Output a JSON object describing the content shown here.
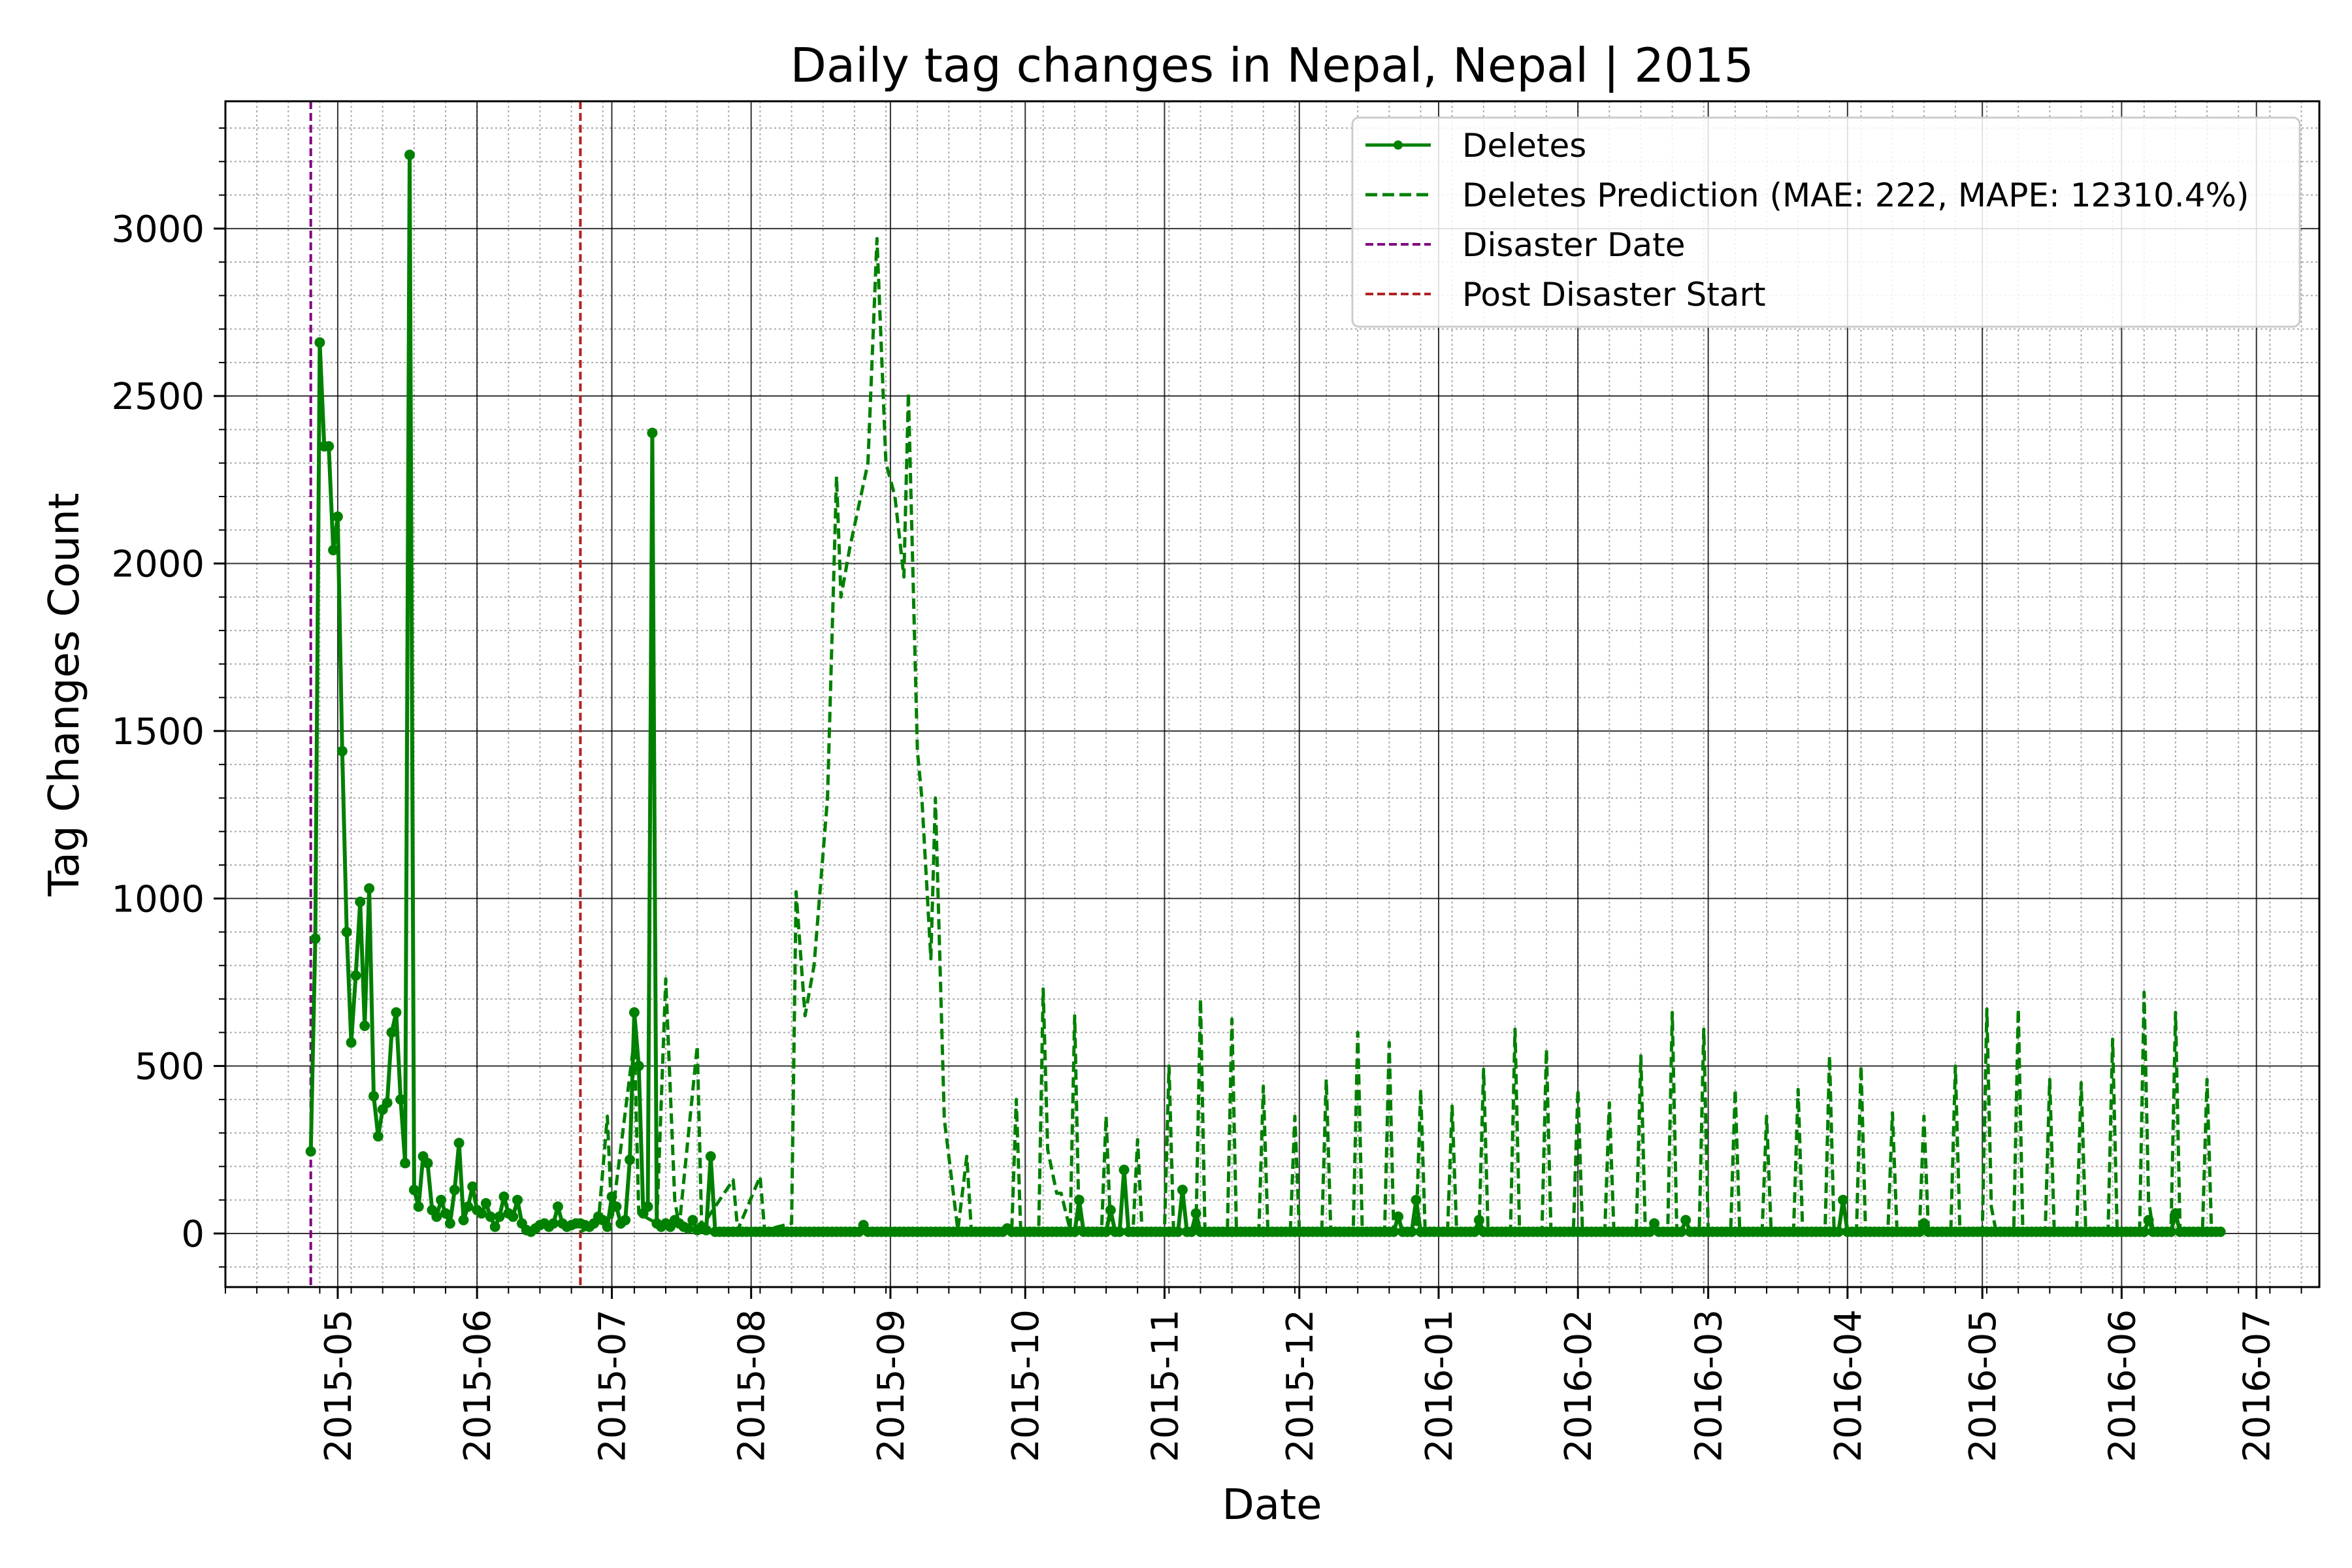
{
  "chart_data": {
    "type": "line",
    "title": "Daily tag changes in Nepal, Nepal | 2015",
    "xlabel": "Date",
    "ylabel": "Tag Changes Count",
    "xlim": [
      "2015-04-06",
      "2016-07-15"
    ],
    "ylim": [
      -160,
      3380
    ],
    "grid": true,
    "legend_position": "top-right",
    "x_tick_labels": [
      "2015-05",
      "2015-06",
      "2015-07",
      "2015-08",
      "2015-09",
      "2015-10",
      "2015-11",
      "2015-12",
      "2016-01",
      "2016-02",
      "2016-03",
      "2016-04",
      "2016-05",
      "2016-06",
      "2016-07"
    ],
    "y_ticks": [
      0,
      500,
      1000,
      1500,
      2000,
      2500,
      3000
    ],
    "y_tick_labels": [
      "0",
      "500",
      "1000",
      "1500",
      "2000",
      "2500",
      "3000"
    ],
    "colors": {
      "deletes": "#008000",
      "prediction": "#008000",
      "disaster": "#800080",
      "post_disaster": "#b22222",
      "major_grid": "#000000",
      "minor_grid": "#aaaaaa"
    },
    "vlines": [
      {
        "name": "Disaster Date",
        "x": "2015-04-25",
        "color": "#800080"
      },
      {
        "name": "Post Disaster Start",
        "x": "2015-06-24",
        "color": "#b22222"
      }
    ],
    "series": [
      {
        "name": "Deletes",
        "style": "solid-marker",
        "points": [
          [
            "2015-04-25",
            245
          ],
          [
            "2015-04-26",
            880
          ],
          [
            "2015-04-27",
            2660
          ],
          [
            "2015-04-28",
            2350
          ],
          [
            "2015-04-29",
            2350
          ],
          [
            "2015-04-30",
            2040
          ],
          [
            "2015-05-01",
            2140
          ],
          [
            "2015-05-02",
            1440
          ],
          [
            "2015-05-03",
            900
          ],
          [
            "2015-05-04",
            570
          ],
          [
            "2015-05-05",
            770
          ],
          [
            "2015-05-06",
            990
          ],
          [
            "2015-05-07",
            620
          ],
          [
            "2015-05-08",
            1030
          ],
          [
            "2015-05-09",
            410
          ],
          [
            "2015-05-10",
            290
          ],
          [
            "2015-05-11",
            370
          ],
          [
            "2015-05-12",
            390
          ],
          [
            "2015-05-13",
            600
          ],
          [
            "2015-05-14",
            660
          ],
          [
            "2015-05-15",
            400
          ],
          [
            "2015-05-16",
            210
          ],
          [
            "2015-05-17",
            3220
          ],
          [
            "2015-05-18",
            130
          ],
          [
            "2015-05-19",
            80
          ],
          [
            "2015-05-20",
            230
          ],
          [
            "2015-05-21",
            210
          ],
          [
            "2015-05-22",
            70
          ],
          [
            "2015-05-23",
            50
          ],
          [
            "2015-05-24",
            100
          ],
          [
            "2015-05-25",
            60
          ],
          [
            "2015-05-26",
            30
          ],
          [
            "2015-05-27",
            130
          ],
          [
            "2015-05-28",
            270
          ],
          [
            "2015-05-29",
            40
          ],
          [
            "2015-05-30",
            80
          ],
          [
            "2015-05-31",
            140
          ],
          [
            "2015-06-01",
            70
          ],
          [
            "2015-06-02",
            60
          ],
          [
            "2015-06-03",
            90
          ],
          [
            "2015-06-04",
            50
          ],
          [
            "2015-06-05",
            20
          ],
          [
            "2015-06-06",
            50
          ],
          [
            "2015-06-07",
            110
          ],
          [
            "2015-06-08",
            60
          ],
          [
            "2015-06-09",
            50
          ],
          [
            "2015-06-10",
            100
          ],
          [
            "2015-06-11",
            30
          ],
          [
            "2015-06-12",
            10
          ],
          [
            "2015-06-13",
            5
          ],
          [
            "2015-06-14",
            15
          ],
          [
            "2015-06-15",
            25
          ],
          [
            "2015-06-16",
            30
          ],
          [
            "2015-06-17",
            20
          ],
          [
            "2015-06-18",
            30
          ],
          [
            "2015-06-19",
            80
          ],
          [
            "2015-06-20",
            30
          ],
          [
            "2015-06-21",
            20
          ],
          [
            "2015-06-22",
            25
          ],
          [
            "2015-06-23",
            30
          ],
          [
            "2015-06-24",
            30
          ],
          [
            "2015-06-25",
            25
          ],
          [
            "2015-06-26",
            20
          ],
          [
            "2015-06-27",
            30
          ],
          [
            "2015-06-28",
            50
          ],
          [
            "2015-06-29",
            40
          ],
          [
            "2015-06-30",
            20
          ],
          [
            "2015-07-01",
            110
          ],
          [
            "2015-07-02",
            80
          ],
          [
            "2015-07-03",
            30
          ],
          [
            "2015-07-04",
            40
          ],
          [
            "2015-07-05",
            220
          ],
          [
            "2015-07-06",
            660
          ],
          [
            "2015-07-07",
            500
          ],
          [
            "2015-07-08",
            60
          ],
          [
            "2015-07-09",
            80
          ],
          [
            "2015-07-10",
            2390
          ],
          [
            "2015-07-11",
            30
          ],
          [
            "2015-07-12",
            20
          ],
          [
            "2015-07-13",
            30
          ],
          [
            "2015-07-14",
            20
          ],
          [
            "2015-07-15",
            40
          ],
          [
            "2015-07-16",
            30
          ],
          [
            "2015-07-17",
            20
          ],
          [
            "2015-07-18",
            15
          ],
          [
            "2015-07-19",
            40
          ],
          [
            "2015-07-20",
            10
          ],
          [
            "2015-07-21",
            20
          ],
          [
            "2015-07-22",
            10
          ],
          [
            "2015-07-23",
            230
          ],
          [
            "2015-08-26",
            25
          ],
          [
            "2015-09-27",
            15
          ],
          [
            "2015-10-13",
            100
          ],
          [
            "2015-10-20",
            70
          ],
          [
            "2015-10-23",
            190
          ],
          [
            "2015-11-05",
            130
          ],
          [
            "2015-11-08",
            60
          ],
          [
            "2015-12-23",
            50
          ],
          [
            "2015-12-27",
            100
          ],
          [
            "2016-01-10",
            40
          ],
          [
            "2016-02-18",
            30
          ],
          [
            "2016-02-25",
            40
          ],
          [
            "2016-03-31",
            100
          ],
          [
            "2016-04-18",
            30
          ],
          [
            "2016-06-07",
            40
          ],
          [
            "2016-06-13",
            60
          ]
        ],
        "baseline": {
          "from": "2015-07-24",
          "to": "2016-06-23",
          "value": 5
        }
      },
      {
        "name": "Deletes Prediction (MAE: 222, MAPE: 12310.4%)",
        "style": "dashed",
        "points": [
          [
            "2015-06-24",
            5
          ],
          [
            "2015-06-28",
            30
          ],
          [
            "2015-06-30",
            350
          ],
          [
            "2015-07-01",
            40
          ],
          [
            "2015-07-06",
            580
          ],
          [
            "2015-07-07",
            60
          ],
          [
            "2015-07-11",
            30
          ],
          [
            "2015-07-13",
            760
          ],
          [
            "2015-07-15",
            100
          ],
          [
            "2015-07-16",
            20
          ],
          [
            "2015-07-20",
            560
          ],
          [
            "2015-07-21",
            20
          ],
          [
            "2015-07-28",
            160
          ],
          [
            "2015-07-29",
            10
          ],
          [
            "2015-08-03",
            170
          ],
          [
            "2015-08-04",
            10
          ],
          [
            "2015-08-10",
            30
          ],
          [
            "2015-08-11",
            1020
          ],
          [
            "2015-08-13",
            650
          ],
          [
            "2015-08-15",
            800
          ],
          [
            "2015-08-18",
            1300
          ],
          [
            "2015-08-20",
            2260
          ],
          [
            "2015-08-21",
            1900
          ],
          [
            "2015-08-23",
            2050
          ],
          [
            "2015-08-27",
            2300
          ],
          [
            "2015-08-29",
            2970
          ],
          [
            "2015-08-31",
            2300
          ],
          [
            "2015-09-02",
            2200
          ],
          [
            "2015-09-04",
            1960
          ],
          [
            "2015-09-05",
            2510
          ],
          [
            "2015-09-07",
            1440
          ],
          [
            "2015-09-08",
            1300
          ],
          [
            "2015-09-10",
            820
          ],
          [
            "2015-09-11",
            1300
          ],
          [
            "2015-09-13",
            340
          ],
          [
            "2015-09-16",
            10
          ],
          [
            "2015-09-18",
            230
          ],
          [
            "2015-09-19",
            10
          ],
          [
            "2015-09-28",
            10
          ],
          [
            "2015-09-29",
            400
          ],
          [
            "2015-09-30",
            10
          ],
          [
            "2015-10-04",
            10
          ],
          [
            "2015-10-05",
            730
          ],
          [
            "2015-10-06",
            250
          ],
          [
            "2015-10-08",
            120
          ],
          [
            "2015-10-09",
            120
          ],
          [
            "2015-10-11",
            10
          ],
          [
            "2015-10-12",
            650
          ],
          [
            "2015-10-13",
            10
          ],
          [
            "2015-10-18",
            10
          ],
          [
            "2015-10-19",
            350
          ],
          [
            "2015-10-20",
            10
          ],
          [
            "2015-10-25",
            10
          ],
          [
            "2015-10-26",
            280
          ],
          [
            "2015-10-27",
            10
          ],
          [
            "2015-11-01",
            10
          ],
          [
            "2015-11-02",
            500
          ],
          [
            "2015-11-03",
            10
          ],
          [
            "2015-11-08",
            10
          ],
          [
            "2015-11-09",
            700
          ],
          [
            "2015-11-10",
            10
          ],
          [
            "2015-11-15",
            10
          ],
          [
            "2015-11-16",
            640
          ],
          [
            "2015-11-17",
            10
          ],
          [
            "2015-11-22",
            10
          ],
          [
            "2015-11-23",
            440
          ],
          [
            "2015-11-24",
            10
          ],
          [
            "2015-11-29",
            10
          ],
          [
            "2015-11-30",
            350
          ],
          [
            "2015-12-01",
            10
          ],
          [
            "2015-12-06",
            10
          ],
          [
            "2015-12-07",
            460
          ],
          [
            "2015-12-08",
            10
          ],
          [
            "2015-12-13",
            10
          ],
          [
            "2015-12-14",
            600
          ],
          [
            "2015-12-15",
            10
          ],
          [
            "2015-12-20",
            10
          ],
          [
            "2015-12-21",
            570
          ],
          [
            "2015-12-22",
            10
          ],
          [
            "2015-12-27",
            10
          ],
          [
            "2015-12-28",
            430
          ],
          [
            "2015-12-29",
            10
          ],
          [
            "2016-01-03",
            10
          ],
          [
            "2016-01-04",
            380
          ],
          [
            "2016-01-05",
            10
          ],
          [
            "2016-01-10",
            10
          ],
          [
            "2016-01-11",
            490
          ],
          [
            "2016-01-12",
            10
          ],
          [
            "2016-01-17",
            10
          ],
          [
            "2016-01-18",
            610
          ],
          [
            "2016-01-19",
            10
          ],
          [
            "2016-01-24",
            10
          ],
          [
            "2016-01-25",
            550
          ],
          [
            "2016-01-26",
            10
          ],
          [
            "2016-01-31",
            10
          ],
          [
            "2016-02-01",
            430
          ],
          [
            "2016-02-02",
            10
          ],
          [
            "2016-02-07",
            10
          ],
          [
            "2016-02-08",
            390
          ],
          [
            "2016-02-09",
            10
          ],
          [
            "2016-02-14",
            10
          ],
          [
            "2016-02-15",
            530
          ],
          [
            "2016-02-16",
            10
          ],
          [
            "2016-02-21",
            10
          ],
          [
            "2016-02-22",
            660
          ],
          [
            "2016-02-23",
            10
          ],
          [
            "2016-02-28",
            10
          ],
          [
            "2016-02-29",
            610
          ],
          [
            "2016-03-01",
            10
          ],
          [
            "2016-03-06",
            10
          ],
          [
            "2016-03-07",
            430
          ],
          [
            "2016-03-08",
            10
          ],
          [
            "2016-03-13",
            10
          ],
          [
            "2016-03-14",
            350
          ],
          [
            "2016-03-15",
            10
          ],
          [
            "2016-03-20",
            10
          ],
          [
            "2016-03-21",
            430
          ],
          [
            "2016-03-22",
            10
          ],
          [
            "2016-03-27",
            10
          ],
          [
            "2016-03-28",
            530
          ],
          [
            "2016-03-29",
            10
          ],
          [
            "2016-04-03",
            10
          ],
          [
            "2016-04-04",
            500
          ],
          [
            "2016-04-05",
            10
          ],
          [
            "2016-04-10",
            10
          ],
          [
            "2016-04-11",
            360
          ],
          [
            "2016-04-12",
            10
          ],
          [
            "2016-04-17",
            10
          ],
          [
            "2016-04-18",
            350
          ],
          [
            "2016-04-19",
            10
          ],
          [
            "2016-04-24",
            10
          ],
          [
            "2016-04-25",
            500
          ],
          [
            "2016-04-26",
            10
          ],
          [
            "2016-05-01",
            10
          ],
          [
            "2016-05-02",
            670
          ],
          [
            "2016-05-03",
            80
          ],
          [
            "2016-05-04",
            10
          ],
          [
            "2016-05-08",
            10
          ],
          [
            "2016-05-09",
            670
          ],
          [
            "2016-05-10",
            10
          ],
          [
            "2016-05-15",
            10
          ],
          [
            "2016-05-16",
            460
          ],
          [
            "2016-05-17",
            10
          ],
          [
            "2016-05-22",
            10
          ],
          [
            "2016-05-23",
            450
          ],
          [
            "2016-05-24",
            10
          ],
          [
            "2016-05-29",
            10
          ],
          [
            "2016-05-30",
            580
          ],
          [
            "2016-05-31",
            10
          ],
          [
            "2016-06-05",
            10
          ],
          [
            "2016-06-06",
            720
          ],
          [
            "2016-06-07",
            100
          ],
          [
            "2016-06-08",
            10
          ],
          [
            "2016-06-12",
            10
          ],
          [
            "2016-06-13",
            660
          ],
          [
            "2016-06-14",
            10
          ],
          [
            "2016-06-19",
            10
          ],
          [
            "2016-06-20",
            460
          ],
          [
            "2016-06-21",
            10
          ],
          [
            "2016-06-23",
            10
          ]
        ]
      }
    ]
  }
}
